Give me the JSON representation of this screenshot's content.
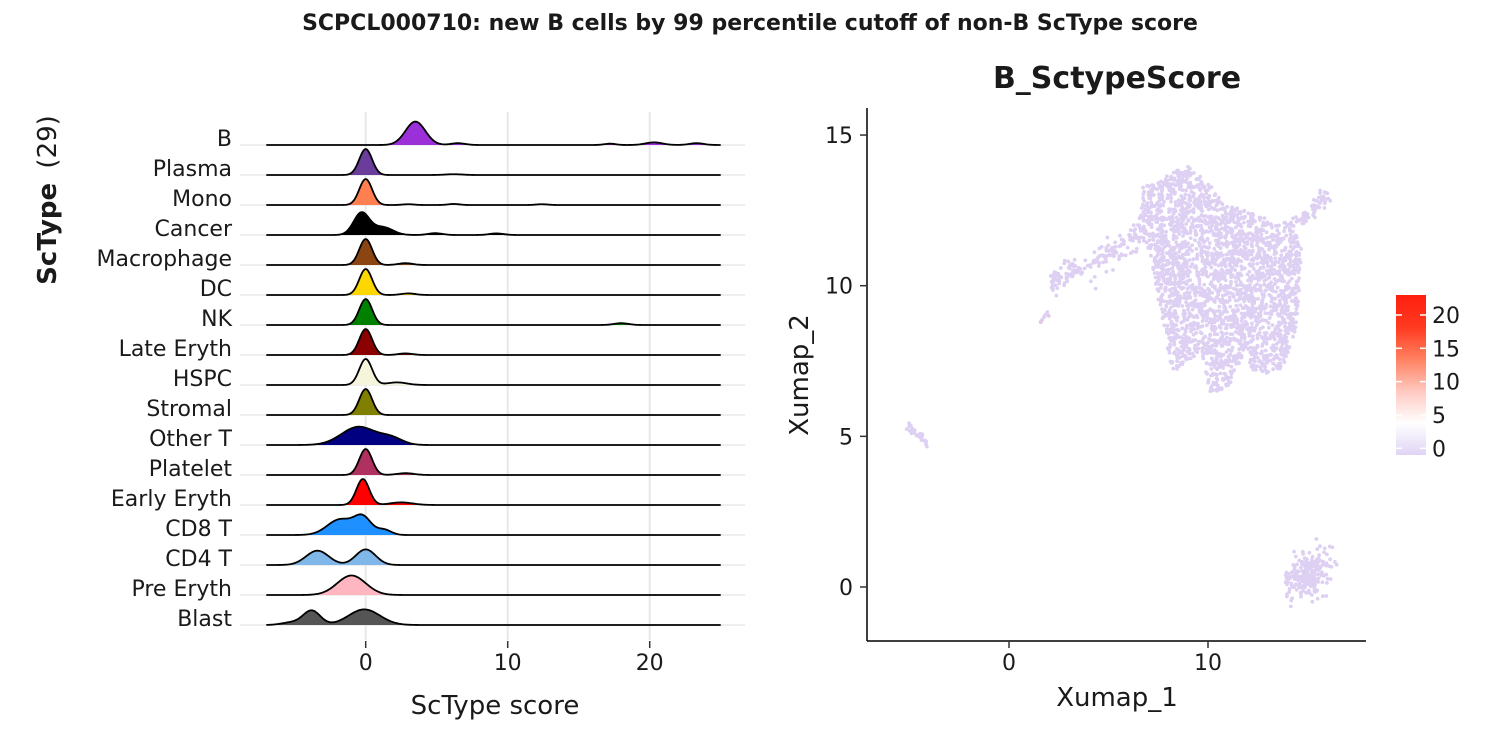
{
  "title": "SCPCL000710: new B cells by 99 percentile cutoff of non-B ScType score",
  "chart_data": [
    {
      "type": "ridgeline",
      "xlabel": "ScType score",
      "ylabel_bold": "ScType",
      "ylabel_count": "(29)",
      "xlim": [
        -7,
        26
      ],
      "xticks": [
        0,
        10,
        20
      ],
      "grid": true,
      "rows": [
        {
          "label": "B",
          "color": "#9b30d9",
          "peaks": [
            [
              3.5,
              0.7,
              0.9
            ],
            [
              6.5,
              0.5,
              0.07
            ],
            [
              17.2,
              0.4,
              0.05
            ],
            [
              20.3,
              0.6,
              0.1
            ],
            [
              23.3,
              0.5,
              0.07
            ]
          ]
        },
        {
          "label": "Plasma",
          "color": "#6a3d9a",
          "peaks": [
            [
              0,
              0.45,
              1.0
            ],
            [
              6.2,
              0.6,
              0.03
            ]
          ]
        },
        {
          "label": "Mono",
          "color": "#ff7f50",
          "peaks": [
            [
              0,
              0.45,
              1.0
            ],
            [
              3,
              0.4,
              0.03
            ],
            [
              6.2,
              0.4,
              0.04
            ],
            [
              12.4,
              0.4,
              0.03
            ]
          ]
        },
        {
          "label": "Cancer",
          "color": "#000000",
          "peaks": [
            [
              -0.3,
              0.55,
              0.85
            ],
            [
              1.2,
              0.7,
              0.3
            ],
            [
              4.9,
              0.5,
              0.07
            ],
            [
              9.2,
              0.5,
              0.06
            ]
          ]
        },
        {
          "label": "Macrophage",
          "color": "#8b4513",
          "peaks": [
            [
              0,
              0.45,
              1.0
            ],
            [
              2.8,
              0.5,
              0.07
            ]
          ]
        },
        {
          "label": "DC",
          "color": "#ffd700",
          "peaks": [
            [
              0,
              0.45,
              1.0
            ],
            [
              3,
              0.5,
              0.06
            ]
          ]
        },
        {
          "label": "NK",
          "color": "#008000",
          "peaks": [
            [
              0,
              0.45,
              1.0
            ],
            [
              18,
              0.5,
              0.07
            ]
          ]
        },
        {
          "label": "Late Eryth",
          "color": "#8b0000",
          "peaks": [
            [
              0,
              0.45,
              1.0
            ],
            [
              2.8,
              0.5,
              0.06
            ]
          ]
        },
        {
          "label": "HSPC",
          "color": "#f5f5dc",
          "peaks": [
            [
              0,
              0.45,
              1.0
            ],
            [
              2.2,
              0.7,
              0.1
            ]
          ]
        },
        {
          "label": "Stromal",
          "color": "#808000",
          "peaks": [
            [
              0,
              0.45,
              1.0
            ]
          ]
        },
        {
          "label": "Other T",
          "color": "#000080",
          "peaks": [
            [
              -0.5,
              1.2,
              0.7
            ],
            [
              1.8,
              0.8,
              0.25
            ]
          ]
        },
        {
          "label": "Platelet",
          "color": "#b03060",
          "peaks": [
            [
              0,
              0.45,
              1.0
            ],
            [
              2.8,
              0.6,
              0.07
            ]
          ]
        },
        {
          "label": "Early Eryth",
          "color": "#ff0000",
          "peaks": [
            [
              -0.2,
              0.45,
              1.0
            ],
            [
              2.5,
              0.8,
              0.1
            ]
          ]
        },
        {
          "label": "CD8 T",
          "color": "#1e90ff",
          "peaks": [
            [
              -1.8,
              0.9,
              0.6
            ],
            [
              -0.2,
              0.6,
              0.65
            ],
            [
              1.3,
              0.5,
              0.2
            ]
          ]
        },
        {
          "label": "CD4 T",
          "color": "#7fb8e8",
          "peaks": [
            [
              -3.4,
              0.8,
              0.55
            ],
            [
              0,
              0.7,
              0.6
            ]
          ]
        },
        {
          "label": "Pre Eryth",
          "color": "#ffb6c1",
          "peaks": [
            [
              -1.0,
              1.0,
              0.75
            ]
          ]
        },
        {
          "label": "Blast",
          "color": "#555555",
          "peaks": [
            [
              -3.8,
              0.6,
              0.55
            ],
            [
              -0.1,
              1.1,
              0.6
            ],
            [
              -5.2,
              0.7,
              0.1
            ]
          ]
        }
      ]
    },
    {
      "type": "scatter",
      "title": "B_SctypeScore",
      "xlabel": "Xumap_1",
      "ylabel": "Xumap_2",
      "xlim": [
        -6.8,
        17.9
      ],
      "ylim": [
        -1.8,
        15.8
      ],
      "xticks": [
        0,
        10
      ],
      "yticks": [
        0,
        5,
        10,
        15
      ],
      "point_color": "#ddd0f3",
      "legend": {
        "placement": "right",
        "ticks": [
          0,
          5,
          10,
          15,
          20
        ],
        "range": [
          -1,
          23
        ],
        "colors": [
          "#e0d4f5",
          "#ffffff",
          "#ffc8c0",
          "#ff8060",
          "#ff3a20",
          "#ff1f10"
        ]
      },
      "clusters": [
        {
          "x": [
            7.5,
            14.5
          ],
          "y": [
            6,
            14
          ],
          "shape": "main"
        },
        {
          "x": [
            2,
            4.3
          ],
          "y": [
            9.5,
            11
          ],
          "shape": "arm"
        },
        {
          "x": [
            -5.2,
            -3.8
          ],
          "y": [
            4.6,
            5.4
          ],
          "shape": "small"
        },
        {
          "x": [
            14,
            16.5
          ],
          "y": [
            -0.4,
            1.2
          ],
          "shape": "blob"
        }
      ]
    }
  ]
}
